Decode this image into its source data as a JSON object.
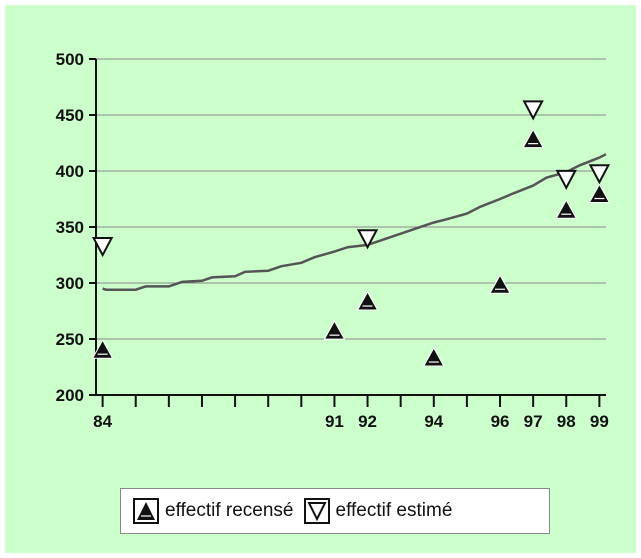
{
  "colors": {
    "background": "#ccffcc",
    "line": "#555555",
    "grid": "#888888",
    "marker": "#111111"
  },
  "legend": {
    "recense_label": "effectif recensé",
    "estime_label": "effectif estimé",
    "recense_icon": "filled-up-triangle-icon",
    "estime_icon": "hollow-down-triangle-icon"
  },
  "chart_data": {
    "type": "scatter",
    "title": "",
    "xlabel": "",
    "ylabel": "",
    "ylim": [
      200,
      500
    ],
    "yticks": [
      200,
      250,
      300,
      350,
      400,
      450,
      500
    ],
    "xlim": [
      83.8,
      99.2
    ],
    "xticks_major": [
      84,
      85,
      86,
      87,
      88,
      89,
      90,
      91,
      92,
      93,
      94,
      95,
      96,
      97,
      98,
      99
    ],
    "xtick_labels": [
      {
        "x": 84,
        "label": "84"
      },
      {
        "x": 91,
        "label": "91"
      },
      {
        "x": 92,
        "label": "92"
      },
      {
        "x": 94,
        "label": "94"
      },
      {
        "x": 96,
        "label": "96"
      },
      {
        "x": 97,
        "label": "97"
      },
      {
        "x": 98,
        "label": "98"
      },
      {
        "x": 99,
        "label": "99"
      }
    ],
    "grid": "horizontal",
    "legend_position": "bottom",
    "series": [
      {
        "name": "effectif recensé",
        "marker": "filled-up-triangle",
        "points": [
          {
            "x": 84,
            "y": 240
          },
          {
            "x": 91,
            "y": 257
          },
          {
            "x": 92,
            "y": 283
          },
          {
            "x": 94,
            "y": 233
          },
          {
            "x": 96,
            "y": 298
          },
          {
            "x": 97,
            "y": 428
          },
          {
            "x": 98,
            "y": 365
          },
          {
            "x": 99,
            "y": 379
          }
        ]
      },
      {
        "name": "effectif estimé",
        "marker": "hollow-down-triangle",
        "points": [
          {
            "x": 84,
            "y": 333
          },
          {
            "x": 92,
            "y": 340
          },
          {
            "x": 97,
            "y": 455
          },
          {
            "x": 98,
            "y": 393
          },
          {
            "x": 99,
            "y": 398
          }
        ]
      },
      {
        "type": "line",
        "points": [
          {
            "x": 84,
            "y": 295
          },
          {
            "x": 84.1,
            "y": 294
          },
          {
            "x": 85,
            "y": 294
          },
          {
            "x": 85.3,
            "y": 297
          },
          {
            "x": 86,
            "y": 297
          },
          {
            "x": 86.4,
            "y": 301
          },
          {
            "x": 87,
            "y": 302
          },
          {
            "x": 87.3,
            "y": 305
          },
          {
            "x": 88,
            "y": 306
          },
          {
            "x": 88.3,
            "y": 310
          },
          {
            "x": 89,
            "y": 311
          },
          {
            "x": 89.4,
            "y": 315
          },
          {
            "x": 90,
            "y": 318
          },
          {
            "x": 90.4,
            "y": 323
          },
          {
            "x": 91,
            "y": 328
          },
          {
            "x": 91.4,
            "y": 332
          },
          {
            "x": 92,
            "y": 334
          },
          {
            "x": 92.4,
            "y": 338
          },
          {
            "x": 93,
            "y": 344
          },
          {
            "x": 93.4,
            "y": 348
          },
          {
            "x": 94,
            "y": 354
          },
          {
            "x": 94.4,
            "y": 357
          },
          {
            "x": 95,
            "y": 362
          },
          {
            "x": 95.4,
            "y": 368
          },
          {
            "x": 96,
            "y": 375
          },
          {
            "x": 96.4,
            "y": 380
          },
          {
            "x": 97,
            "y": 387
          },
          {
            "x": 97.4,
            "y": 394
          },
          {
            "x": 98,
            "y": 399
          },
          {
            "x": 98.4,
            "y": 405
          },
          {
            "x": 99,
            "y": 412
          },
          {
            "x": 99.2,
            "y": 415
          }
        ]
      }
    ]
  }
}
